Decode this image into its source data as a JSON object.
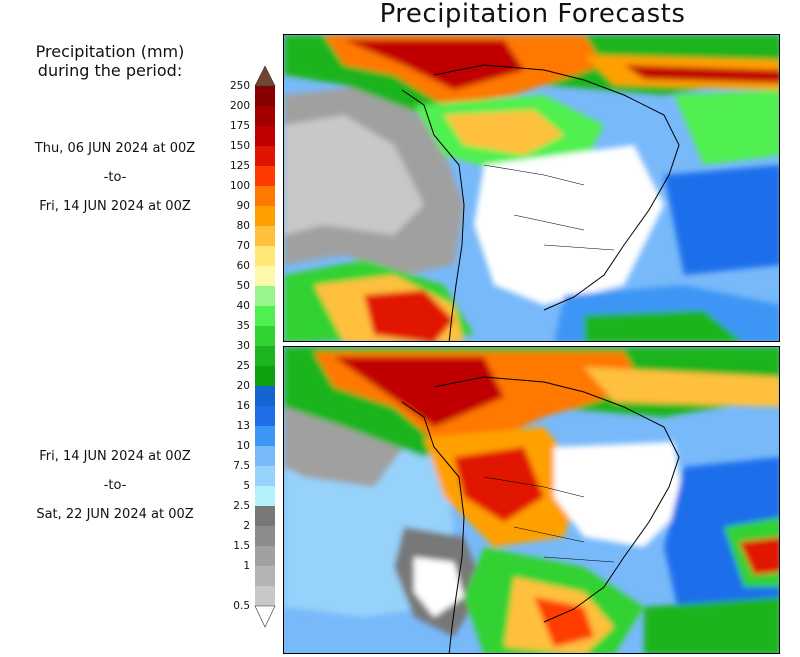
{
  "title": "Precipitation Forecasts",
  "legend": {
    "title_line1": "Precipitation (mm)",
    "title_line2": "during the period:",
    "bins": [
      {
        "value": "0.5",
        "color": "#c8c8c8"
      },
      {
        "value": "1",
        "color": "#b4b4b4"
      },
      {
        "value": "1.5",
        "color": "#a0a0a0"
      },
      {
        "value": "2",
        "color": "#8c8c8c"
      },
      {
        "value": "2.5",
        "color": "#787878"
      },
      {
        "value": "5",
        "color": "#b4f0fa"
      },
      {
        "value": "7.5",
        "color": "#96d2fa"
      },
      {
        "value": "10",
        "color": "#78b9fa"
      },
      {
        "value": "13",
        "color": "#3c96f5"
      },
      {
        "value": "16",
        "color": "#1e6eeb"
      },
      {
        "value": "20",
        "color": "#1464d2"
      },
      {
        "value": "25",
        "color": "#0fa00f"
      },
      {
        "value": "30",
        "color": "#1eb41e"
      },
      {
        "value": "35",
        "color": "#32d232"
      },
      {
        "value": "40",
        "color": "#50f050"
      },
      {
        "value": "50",
        "color": "#96f58c"
      },
      {
        "value": "60",
        "color": "#fffaaa"
      },
      {
        "value": "70",
        "color": "#ffe878"
      },
      {
        "value": "80",
        "color": "#ffc03c"
      },
      {
        "value": "90",
        "color": "#ffa000"
      },
      {
        "value": "100",
        "color": "#ff7800"
      },
      {
        "value": "125",
        "color": "#ff3c00"
      },
      {
        "value": "150",
        "color": "#e11400"
      },
      {
        "value": "175",
        "color": "#c00000"
      },
      {
        "value": "200",
        "color": "#a50000"
      },
      {
        "value": "250",
        "color": "#870000"
      }
    ],
    "over_color": "#6e4632",
    "under_color": "#ffffff"
  },
  "periods": [
    {
      "start": "Thu, 06 JUN 2024 at 00Z",
      "sep": "-to-",
      "end": "Fri, 14 JUN 2024 at 00Z"
    },
    {
      "start": "Fri, 14 JUN 2024 at 00Z",
      "sep": "-to-",
      "end": "Sat, 22 JUN 2024 at 00Z"
    }
  ]
}
